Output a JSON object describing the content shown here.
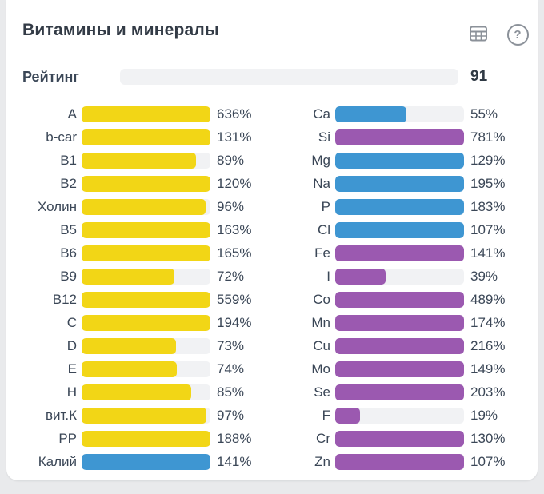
{
  "header": {
    "title": "Витамины и минералы",
    "table_icon": "table-grid-icon",
    "help_icon": "question-mark-circle-icon",
    "help_glyph": "?",
    "icon_color": "#8b9199"
  },
  "rating": {
    "label": "Рейтинг",
    "value": "91",
    "percent": 91,
    "bar_color": "#2ecc71",
    "track_color": "#f1f2f4"
  },
  "colors": {
    "yellow": "#f2d616",
    "blue": "#3e96d2",
    "purple": "#9b59b0",
    "green": "#2ecc71",
    "track": "#f1f2f4"
  },
  "chart_data": {
    "type": "bar",
    "unit": "%",
    "orientation": "horizontal",
    "fill_cap_percent": 100,
    "rating": {
      "label": "Рейтинг",
      "value": 91
    },
    "columns": [
      {
        "name": "vitamins",
        "rows": [
          {
            "label": "A",
            "value": 636,
            "display": "636%",
            "color": "#f2d616"
          },
          {
            "label": "b-car",
            "value": 131,
            "display": "131%",
            "color": "#f2d616"
          },
          {
            "label": "B1",
            "value": 89,
            "display": "89%",
            "color": "#f2d616"
          },
          {
            "label": "B2",
            "value": 120,
            "display": "120%",
            "color": "#f2d616"
          },
          {
            "label": "Холин",
            "value": 96,
            "display": "96%",
            "color": "#f2d616"
          },
          {
            "label": "B5",
            "value": 163,
            "display": "163%",
            "color": "#f2d616"
          },
          {
            "label": "B6",
            "value": 165,
            "display": "165%",
            "color": "#f2d616"
          },
          {
            "label": "B9",
            "value": 72,
            "display": "72%",
            "color": "#f2d616"
          },
          {
            "label": "B12",
            "value": 559,
            "display": "559%",
            "color": "#f2d616"
          },
          {
            "label": "C",
            "value": 194,
            "display": "194%",
            "color": "#f2d616"
          },
          {
            "label": "D",
            "value": 73,
            "display": "73%",
            "color": "#f2d616"
          },
          {
            "label": "E",
            "value": 74,
            "display": "74%",
            "color": "#f2d616"
          },
          {
            "label": "H",
            "value": 85,
            "display": "85%",
            "color": "#f2d616"
          },
          {
            "label": "вит.К",
            "value": 97,
            "display": "97%",
            "color": "#f2d616"
          },
          {
            "label": "PP",
            "value": 188,
            "display": "188%",
            "color": "#f2d616"
          },
          {
            "label": "Калий",
            "value": 141,
            "display": "141%",
            "color": "#3e96d2"
          }
        ]
      },
      {
        "name": "minerals",
        "rows": [
          {
            "label": "Ca",
            "value": 55,
            "display": "55%",
            "color": "#3e96d2"
          },
          {
            "label": "Si",
            "value": 781,
            "display": "781%",
            "color": "#9b59b0"
          },
          {
            "label": "Mg",
            "value": 129,
            "display": "129%",
            "color": "#3e96d2"
          },
          {
            "label": "Na",
            "value": 195,
            "display": "195%",
            "color": "#3e96d2"
          },
          {
            "label": "P",
            "value": 183,
            "display": "183%",
            "color": "#3e96d2"
          },
          {
            "label": "Cl",
            "value": 107,
            "display": "107%",
            "color": "#3e96d2"
          },
          {
            "label": "Fe",
            "value": 141,
            "display": "141%",
            "color": "#9b59b0"
          },
          {
            "label": "I",
            "value": 39,
            "display": "39%",
            "color": "#9b59b0"
          },
          {
            "label": "Co",
            "value": 489,
            "display": "489%",
            "color": "#9b59b0"
          },
          {
            "label": "Mn",
            "value": 174,
            "display": "174%",
            "color": "#9b59b0"
          },
          {
            "label": "Cu",
            "value": 216,
            "display": "216%",
            "color": "#9b59b0"
          },
          {
            "label": "Mo",
            "value": 149,
            "display": "149%",
            "color": "#9b59b0"
          },
          {
            "label": "Se",
            "value": 203,
            "display": "203%",
            "color": "#9b59b0"
          },
          {
            "label": "F",
            "value": 19,
            "display": "19%",
            "color": "#9b59b0"
          },
          {
            "label": "Cr",
            "value": 130,
            "display": "130%",
            "color": "#9b59b0"
          },
          {
            "label": "Zn",
            "value": 107,
            "display": "107%",
            "color": "#9b59b0"
          }
        ]
      }
    ]
  }
}
